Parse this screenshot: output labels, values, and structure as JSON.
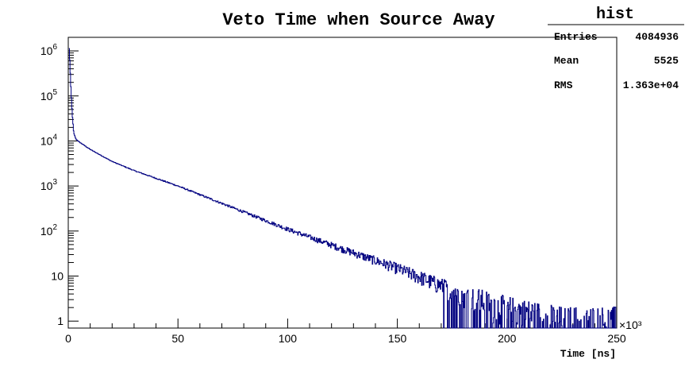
{
  "chart_data": {
    "type": "line",
    "title": "Veto Time when Source Away",
    "xlabel": "Time [ns]",
    "ylabel": "",
    "x_scale_label": "×10³",
    "xlim": [
      0,
      250
    ],
    "ylim": [
      0.7,
      2000000
    ],
    "y_scale": "log",
    "x_ticks": [
      "0",
      "50",
      "100",
      "150",
      "200",
      "250"
    ],
    "y_ticks": [
      {
        "value": 1,
        "base": "1",
        "exp": ""
      },
      {
        "value": 10,
        "base": "10",
        "exp": ""
      },
      {
        "value": 100,
        "base": "10",
        "exp": "2"
      },
      {
        "value": 1000,
        "base": "10",
        "exp": "3"
      },
      {
        "value": 10000,
        "base": "10",
        "exp": "4"
      },
      {
        "value": 100000,
        "base": "10",
        "exp": "5"
      },
      {
        "value": 1000000,
        "base": "10",
        "exp": "6"
      }
    ],
    "grid": false,
    "legend": "none",
    "series": [
      {
        "x": [
          0.3,
          0.7,
          1.2,
          1.8,
          2.5,
          3.5,
          5,
          10,
          20,
          30,
          50,
          75,
          100,
          125,
          150,
          175,
          200,
          225,
          250
        ],
        "y": [
          1500000,
          600000,
          150000,
          40000,
          15000,
          11000,
          9500,
          6500,
          3500,
          2200,
          1000,
          330,
          110,
          40,
          15,
          5,
          2,
          1,
          1
        ],
        "color": "#000080"
      }
    ],
    "stats_box": {
      "title": "hist",
      "rows": [
        {
          "label": "Entries",
          "value": "4084936"
        },
        {
          "label": "Mean",
          "value": "5525"
        },
        {
          "label": "RMS",
          "value": "1.363e+04"
        }
      ]
    }
  }
}
